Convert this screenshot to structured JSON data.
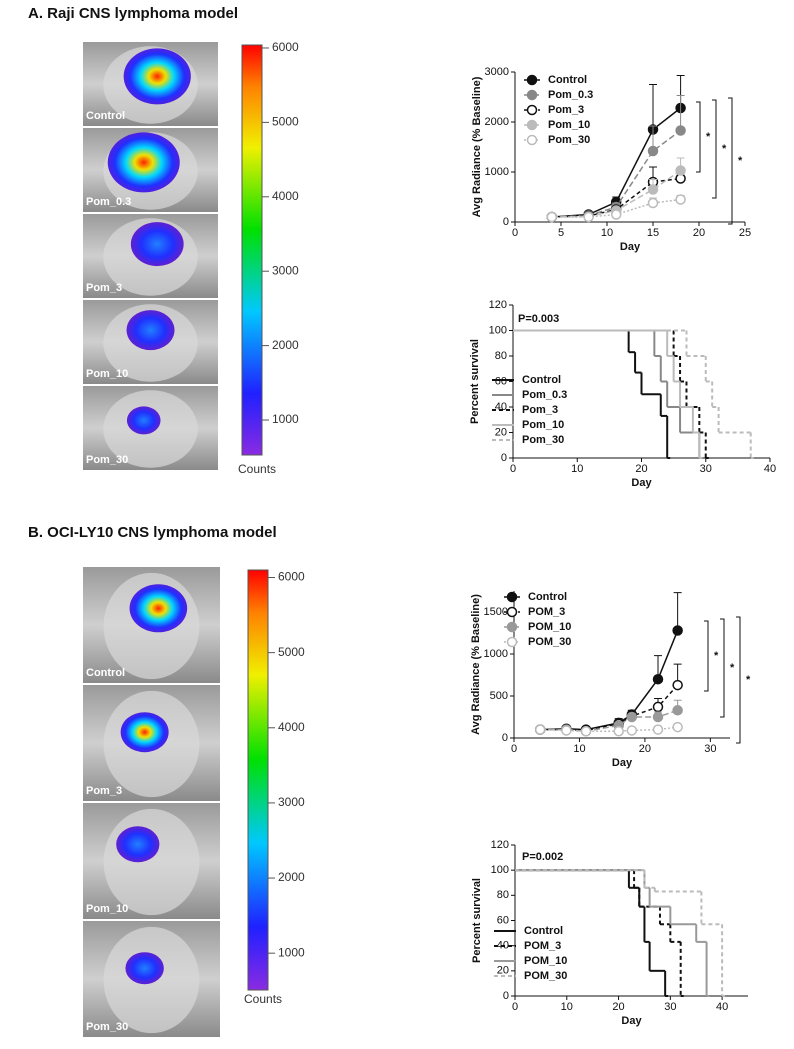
{
  "sections": [
    {
      "title": "A.  Raji CNS lymphoma model",
      "images": [
        "Control",
        "Pom_0.3",
        "Pom_3",
        "Pom_10",
        "Pom_30"
      ],
      "colorbar": {
        "label": "Counts",
        "ylim": [
          530,
          6040
        ],
        "yticks": [
          1000,
          2000,
          3000,
          4000,
          5000,
          6000
        ]
      }
    },
    {
      "title": "B.  OCI-LY10 CNS lymphoma model",
      "images": [
        "Control",
        "Pom_3",
        "Pom_10",
        "Pom_30"
      ],
      "colorbar": {
        "label": "Counts",
        "ylim": [
          510,
          6100
        ],
        "yticks": [
          1000,
          2000,
          3000,
          4000,
          5000,
          6000
        ]
      }
    }
  ],
  "chart_data": [
    {
      "type": "line",
      "xlabel": "Day",
      "ylabel": "Avg Radiance (% Baseline)",
      "x": [
        4,
        8,
        11,
        15,
        18
      ],
      "xlim": [
        0,
        25
      ],
      "xticks": [
        0,
        5,
        10,
        15,
        20,
        25
      ],
      "ylim": [
        0,
        3000
      ],
      "yticks": [
        0,
        1000,
        2000,
        3000
      ],
      "annotations": [
        "*",
        "*",
        "*"
      ],
      "series": [
        {
          "name": "Control",
          "color": "#111111",
          "filled": true,
          "dash": "none",
          "values": [
            100,
            150,
            400,
            1850,
            2280
          ],
          "errors": [
            0,
            30,
            100,
            900,
            650
          ]
        },
        {
          "name": "Pom_0.3",
          "color": "#888888",
          "filled": true,
          "dash": "6,3",
          "values": [
            100,
            130,
            300,
            1420,
            1830
          ],
          "errors": [
            0,
            20,
            80,
            500,
            700
          ]
        },
        {
          "name": "Pom_3",
          "color": "#111111",
          "filled": false,
          "dash": "4,3",
          "values": [
            100,
            120,
            250,
            800,
            870
          ],
          "errors": [
            0,
            20,
            60,
            300,
            200
          ]
        },
        {
          "name": "Pom_10",
          "color": "#bbbbbb",
          "filled": true,
          "dash": "6,3",
          "values": [
            100,
            110,
            230,
            650,
            1030
          ],
          "errors": [
            0,
            20,
            50,
            200,
            250
          ]
        },
        {
          "name": "Pom_30",
          "color": "#bbbbbb",
          "filled": false,
          "dash": "2,2",
          "values": [
            100,
            100,
            150,
            380,
            450
          ],
          "errors": [
            0,
            10,
            30,
            100,
            80
          ]
        }
      ]
    },
    {
      "type": "step",
      "xlabel": "Day",
      "ylabel": "Percent survival",
      "annotation": "P=0.003",
      "xlim": [
        0,
        40
      ],
      "xticks": [
        0,
        10,
        20,
        30,
        40
      ],
      "ylim": [
        0,
        120
      ],
      "yticks": [
        0,
        20,
        40,
        60,
        80,
        100,
        120
      ],
      "series": [
        {
          "name": "Control",
          "color": "#111111",
          "dash": "none",
          "x": [
            0,
            18,
            19,
            20,
            23,
            24
          ],
          "values": [
            100,
            83,
            67,
            50,
            33,
            0
          ]
        },
        {
          "name": "Pom_0.3",
          "color": "#888888",
          "dash": "none",
          "x": [
            0,
            22,
            23,
            24,
            26,
            29
          ],
          "values": [
            100,
            80,
            60,
            40,
            20,
            0
          ]
        },
        {
          "name": "Pom_3",
          "color": "#111111",
          "dash": "4,3",
          "x": [
            0,
            25,
            26,
            27,
            29,
            30
          ],
          "values": [
            100,
            80,
            60,
            40,
            20,
            0
          ]
        },
        {
          "name": "Pom_10",
          "color": "#bbbbbb",
          "dash": "none",
          "x": [
            0,
            24,
            25,
            26,
            28,
            29
          ],
          "values": [
            100,
            80,
            60,
            40,
            20,
            0
          ]
        },
        {
          "name": "Pom_30",
          "color": "#bbbbbb",
          "dash": "4,3",
          "x": [
            0,
            27,
            30,
            31,
            32,
            37
          ],
          "values": [
            100,
            80,
            60,
            40,
            20,
            0
          ]
        }
      ]
    },
    {
      "type": "line",
      "xlabel": "Day",
      "ylabel": "Avg Radiance (% Baseline)",
      "x": [
        4,
        8,
        11,
        16,
        18,
        22,
        25
      ],
      "xlim": [
        0,
        33
      ],
      "xticks": [
        0,
        10,
        20,
        30
      ],
      "ylim": [
        0,
        1750
      ],
      "yticks": [
        0,
        500,
        1000,
        1500
      ],
      "annotations": [
        "*",
        "*",
        "*"
      ],
      "series": [
        {
          "name": "Control",
          "color": "#111111",
          "filled": true,
          "dash": "none",
          "values": [
            100,
            110,
            100,
            180,
            280,
            700,
            1280
          ],
          "errors": [
            0,
            20,
            20,
            50,
            50,
            280,
            450
          ]
        },
        {
          "name": "POM_3",
          "color": "#111111",
          "filled": false,
          "dash": "4,3",
          "values": [
            100,
            100,
            90,
            170,
            260,
            370,
            630
          ],
          "errors": [
            0,
            15,
            15,
            40,
            40,
            100,
            250
          ]
        },
        {
          "name": "POM_10",
          "color": "#999999",
          "filled": true,
          "dash": "6,3",
          "values": [
            100,
            100,
            80,
            150,
            250,
            250,
            330
          ],
          "errors": [
            0,
            15,
            15,
            30,
            40,
            60,
            120
          ]
        },
        {
          "name": "POM_30",
          "color": "#bbbbbb",
          "filled": false,
          "dash": "2,2",
          "values": [
            100,
            90,
            80,
            80,
            90,
            100,
            130
          ],
          "errors": [
            0,
            10,
            10,
            10,
            10,
            15,
            20
          ]
        }
      ]
    },
    {
      "type": "step",
      "xlabel": "Day",
      "ylabel": "Percent survival",
      "annotation": "P=0.002",
      "xlim": [
        0,
        45
      ],
      "xticks": [
        0,
        10,
        20,
        30,
        40
      ],
      "ylim": [
        0,
        120
      ],
      "yticks": [
        0,
        20,
        40,
        60,
        80,
        100,
        120
      ],
      "series": [
        {
          "name": "Control",
          "color": "#111111",
          "dash": "none",
          "x": [
            0,
            22,
            24,
            25,
            26,
            29
          ],
          "values": [
            100,
            86,
            71,
            43,
            20,
            0
          ]
        },
        {
          "name": "POM_3",
          "color": "#111111",
          "dash": "4,3",
          "x": [
            0,
            23,
            24,
            28,
            30,
            32
          ],
          "values": [
            100,
            86,
            71,
            57,
            43,
            0
          ]
        },
        {
          "name": "POM_10",
          "color": "#999999",
          "dash": "none",
          "x": [
            0,
            25,
            26,
            30,
            35,
            37
          ],
          "values": [
            100,
            86,
            71,
            57,
            43,
            0
          ]
        },
        {
          "name": "POM_30",
          "color": "#bbbbbb",
          "dash": "4,3",
          "x": [
            0,
            25,
            27,
            36,
            40
          ],
          "values": [
            100,
            86,
            83,
            57,
            0
          ]
        }
      ]
    }
  ]
}
